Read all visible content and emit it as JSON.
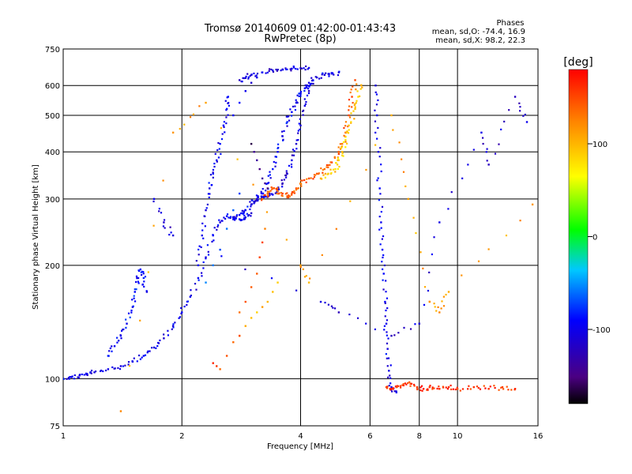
{
  "header": {
    "title_line1": "Tromsø 20140609 01:42:00-01:43:43",
    "title_line2": "RwPretec (8p)",
    "phases_title": "Phases",
    "phases_line1": "mean, sd,O:  -74.4, 16.9",
    "phases_line2": "mean, sd,X:   98.2, 22.3"
  },
  "chart_data": {
    "type": "scatter",
    "xlabel": "Frequency [MHz]",
    "ylabel": "Stationary phase Virtual Height [km]",
    "xscale": "log",
    "yscale": "log",
    "xlim": [
      1,
      16
    ],
    "ylim": [
      75,
      750
    ],
    "x_ticks": [
      1,
      2,
      4,
      6,
      8,
      10,
      16
    ],
    "y_ticks": [
      75,
      100,
      200,
      300,
      400,
      500,
      600,
      750
    ],
    "grid": true,
    "colorbar": {
      "label": "[deg]",
      "range": [
        -180,
        180
      ],
      "ticks": [
        100,
        0,
        -100
      ],
      "colors": [
        "#000000",
        "#4b0082",
        "#0000ff",
        "#00c8ff",
        "#00ff00",
        "#ffff00",
        "#ff8000",
        "#ff0000"
      ]
    },
    "traces": [
      {
        "phase": -100,
        "points": [
          [
            1.0,
            100
          ],
          [
            1.05,
            101
          ],
          [
            1.1,
            102
          ],
          [
            1.15,
            103
          ],
          [
            1.2,
            104
          ],
          [
            1.3,
            106
          ],
          [
            1.4,
            108
          ],
          [
            1.5,
            111
          ],
          [
            1.6,
            115
          ],
          [
            1.7,
            121
          ],
          [
            1.8,
            128
          ],
          [
            1.9,
            138
          ],
          [
            2.0,
            150
          ],
          [
            2.1,
            165
          ],
          [
            2.2,
            185
          ],
          [
            2.3,
            210
          ],
          [
            2.4,
            240
          ],
          [
            2.5,
            260
          ],
          [
            2.6,
            270
          ],
          [
            2.7,
            268
          ],
          [
            2.8,
            265
          ],
          [
            2.9,
            268
          ],
          [
            3.0,
            275
          ]
        ]
      },
      {
        "phase": -90,
        "points": [
          [
            1.3,
            115
          ],
          [
            1.35,
            122
          ],
          [
            1.4,
            130
          ],
          [
            1.45,
            140
          ],
          [
            1.5,
            155
          ],
          [
            1.52,
            170
          ],
          [
            1.55,
            185
          ],
          [
            1.57,
            195
          ],
          [
            1.6,
            185
          ],
          [
            1.63,
            170
          ]
        ]
      },
      {
        "phase": -100,
        "points": [
          [
            2.2,
            200
          ],
          [
            2.25,
            240
          ],
          [
            2.3,
            280
          ],
          [
            2.35,
            320
          ],
          [
            2.4,
            350
          ],
          [
            2.45,
            380
          ],
          [
            2.5,
            420
          ],
          [
            2.55,
            470
          ],
          [
            2.6,
            520
          ],
          [
            2.62,
            560
          ]
        ]
      },
      {
        "phase": -105,
        "points": [
          [
            2.8,
            620
          ],
          [
            2.9,
            628
          ],
          [
            3.0,
            640
          ],
          [
            3.2,
            650
          ],
          [
            3.4,
            658
          ],
          [
            3.6,
            662
          ],
          [
            3.8,
            665
          ],
          [
            4.0,
            667
          ],
          [
            4.2,
            668
          ]
        ]
      },
      {
        "phase": -100,
        "points": [
          [
            2.7,
            500
          ],
          [
            2.8,
            540
          ],
          [
            2.9,
            580
          ],
          [
            3.0,
            610
          ],
          [
            3.1,
            630
          ]
        ]
      },
      {
        "phase": -110,
        "points": [
          [
            3.0,
            290
          ],
          [
            3.1,
            298
          ],
          [
            3.2,
            303
          ],
          [
            3.3,
            305
          ],
          [
            3.4,
            308
          ],
          [
            3.5,
            315
          ],
          [
            3.6,
            330
          ],
          [
            3.7,
            350
          ],
          [
            3.8,
            380
          ],
          [
            3.9,
            420
          ],
          [
            4.0,
            470
          ],
          [
            4.1,
            530
          ],
          [
            4.2,
            580
          ],
          [
            4.3,
            620
          ]
        ]
      },
      {
        "phase": -95,
        "points": [
          [
            2.7,
            265
          ],
          [
            2.8,
            272
          ],
          [
            2.9,
            280
          ],
          [
            3.0,
            290
          ],
          [
            3.1,
            300
          ],
          [
            3.2,
            310
          ],
          [
            3.3,
            330
          ],
          [
            3.4,
            360
          ],
          [
            3.5,
            400
          ],
          [
            3.6,
            440
          ],
          [
            3.7,
            480
          ],
          [
            3.8,
            510
          ],
          [
            3.9,
            540
          ],
          [
            4.0,
            570
          ],
          [
            4.1,
            590
          ],
          [
            4.2,
            610
          ],
          [
            4.4,
            630
          ],
          [
            4.6,
            640
          ],
          [
            4.8,
            645
          ],
          [
            5.0,
            650
          ]
        ]
      },
      {
        "phase": -150,
        "points": [
          [
            3.0,
            420
          ],
          [
            3.05,
            400
          ],
          [
            3.1,
            380
          ],
          [
            3.15,
            360
          ],
          [
            3.2,
            340
          ],
          [
            3.25,
            330
          ],
          [
            3.3,
            320
          ]
        ]
      },
      {
        "phase": 140,
        "points": [
          [
            3.2,
            300
          ],
          [
            3.3,
            310
          ],
          [
            3.4,
            320
          ],
          [
            3.5,
            315
          ],
          [
            3.6,
            310
          ],
          [
            3.7,
            305
          ],
          [
            3.8,
            310
          ],
          [
            3.9,
            320
          ],
          [
            4.0,
            330
          ],
          [
            4.2,
            340
          ],
          [
            4.4,
            350
          ],
          [
            4.6,
            360
          ],
          [
            4.8,
            375
          ],
          [
            5.0,
            395
          ],
          [
            5.1,
            420
          ],
          [
            5.2,
            450
          ],
          [
            5.3,
            500
          ],
          [
            5.4,
            560
          ],
          [
            5.5,
            620
          ]
        ]
      },
      {
        "phase": 90,
        "points": [
          [
            4.5,
            340
          ],
          [
            4.7,
            350
          ],
          [
            4.9,
            360
          ],
          [
            5.0,
            380
          ],
          [
            5.1,
            400
          ],
          [
            5.2,
            430
          ],
          [
            5.3,
            470
          ],
          [
            5.5,
            520
          ],
          [
            5.6,
            560
          ],
          [
            5.7,
            600
          ]
        ]
      },
      {
        "phase": 100,
        "points": [
          [
            2.8,
            130
          ],
          [
            2.9,
            138
          ],
          [
            3.0,
            145
          ],
          [
            3.1,
            150
          ],
          [
            3.2,
            155
          ],
          [
            3.3,
            160
          ],
          [
            3.4,
            170
          ],
          [
            3.5,
            180
          ]
        ]
      },
      {
        "phase": 140,
        "points": [
          [
            2.8,
            150
          ],
          [
            2.9,
            160
          ],
          [
            3.0,
            175
          ],
          [
            3.1,
            190
          ],
          [
            3.15,
            210
          ],
          [
            3.2,
            230
          ],
          [
            3.25,
            250
          ]
        ]
      },
      {
        "phase": 150,
        "points": [
          [
            2.4,
            110
          ],
          [
            2.45,
            108
          ],
          [
            2.5,
            106
          ],
          [
            2.6,
            115
          ],
          [
            2.7,
            125
          ],
          [
            2.8,
            130
          ]
        ]
      },
      {
        "phase": -60,
        "points": [
          [
            2.3,
            180
          ],
          [
            2.4,
            200
          ],
          [
            2.5,
            220
          ],
          [
            2.6,
            250
          ],
          [
            2.7,
            280
          ],
          [
            2.8,
            310
          ]
        ]
      },
      {
        "phase": -100,
        "points": [
          [
            6.2,
            600
          ],
          [
            6.25,
            500
          ],
          [
            6.3,
            400
          ],
          [
            6.35,
            320
          ],
          [
            6.4,
            260
          ],
          [
            6.45,
            220
          ],
          [
            6.5,
            190
          ],
          [
            6.55,
            160
          ],
          [
            6.6,
            140
          ],
          [
            6.65,
            120
          ],
          [
            6.7,
            105
          ],
          [
            6.8,
            95
          ],
          [
            7.0,
            92
          ]
        ]
      },
      {
        "phase": 160,
        "points": [
          [
            6.6,
            95
          ],
          [
            6.8,
            94
          ],
          [
            7.0,
            95
          ],
          [
            7.3,
            96
          ],
          [
            7.6,
            97
          ],
          [
            7.9,
            95
          ],
          [
            8.2,
            94
          ],
          [
            8.5,
            95
          ],
          [
            9.0,
            94
          ],
          [
            9.5,
            95
          ],
          [
            10.0,
            94
          ],
          [
            11.0,
            95
          ],
          [
            12.0,
            94
          ],
          [
            13.0,
            95
          ],
          [
            14.0,
            94
          ]
        ]
      },
      {
        "phase": -110,
        "points": [
          [
            1.7,
            300
          ],
          [
            1.8,
            260
          ],
          [
            1.9,
            240
          ],
          [
            4.5,
            160
          ],
          [
            5.0,
            150
          ],
          [
            6.8,
            130
          ],
          [
            8.0,
            140
          ],
          [
            9.0,
            260
          ],
          [
            11.5,
            450
          ],
          [
            12.0,
            370
          ],
          [
            14.0,
            560
          ],
          [
            15.0,
            480
          ]
        ]
      },
      {
        "phase": 110,
        "points": [
          [
            1.4,
            82
          ],
          [
            1.9,
            450
          ],
          [
            2.3,
            540
          ],
          [
            4.0,
            200
          ],
          [
            4.2,
            180
          ],
          [
            6.8,
            500
          ],
          [
            7.5,
            300
          ],
          [
            8.5,
            160
          ],
          [
            9.0,
            150
          ],
          [
            9.5,
            170
          ],
          [
            15.5,
            290
          ]
        ]
      }
    ]
  }
}
